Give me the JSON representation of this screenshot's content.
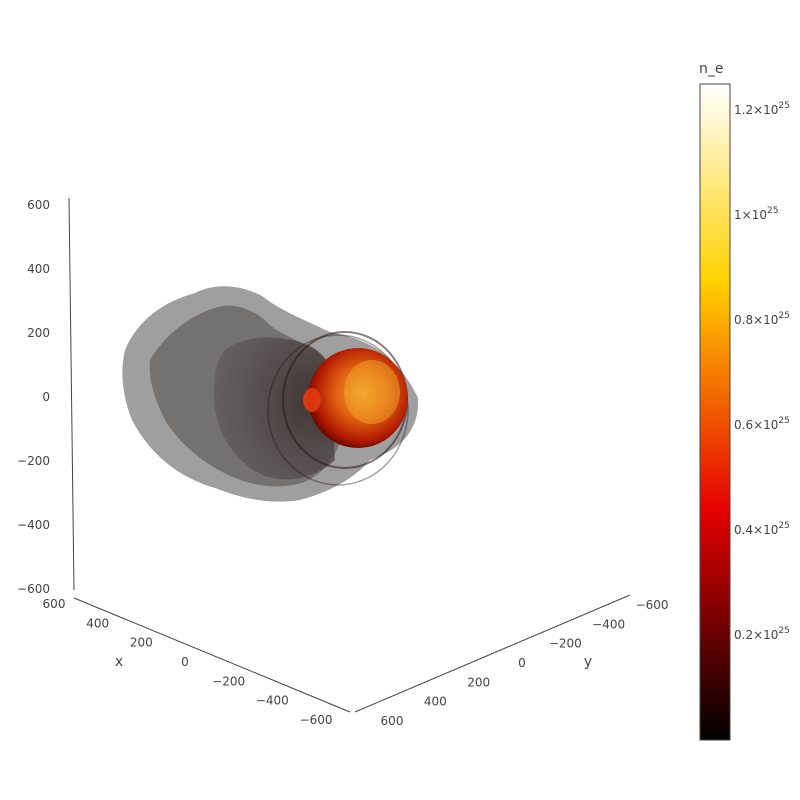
{
  "chart_data": {
    "type": "volume",
    "colorbar": {
      "title": "n_e",
      "colorscale": "hot",
      "tick_labels": [
        {
          "value": 1.2e+25,
          "mantissa": "1.2×10",
          "exp": "25"
        },
        {
          "value": 1e+25,
          "mantissa": "1×10",
          "exp": "25"
        },
        {
          "value": 8e+24,
          "mantissa": "0.8×10",
          "exp": "25"
        },
        {
          "value": 6e+24,
          "mantissa": "0.6×10",
          "exp": "25"
        },
        {
          "value": 4e+24,
          "mantissa": "0.4×10",
          "exp": "25"
        },
        {
          "value": 2e+24,
          "mantissa": "0.2×10",
          "exp": "25"
        }
      ],
      "range": [
        0,
        1.25e+25
      ]
    },
    "axes": {
      "x": {
        "title": "x",
        "range": [
          -600,
          600
        ],
        "ticks": [
          "600",
          "400",
          "200",
          "0",
          "−200",
          "−400",
          "−600"
        ]
      },
      "y": {
        "title": "y",
        "range": [
          -600,
          600
        ],
        "ticks": [
          "600",
          "400",
          "200",
          "0",
          "−200",
          "−400",
          "−600"
        ]
      },
      "z": {
        "title": "",
        "range": [
          -600,
          600
        ],
        "ticks": [
          "600",
          "400",
          "200",
          "0",
          "−200",
          "−400",
          "−600"
        ]
      }
    },
    "grid": false,
    "colors": {
      "halo_gray": "#9a9a9a",
      "shadow_gray": "#6f6b6b",
      "core_red": "#cc1a00",
      "core_hot": "#ffb000"
    }
  }
}
